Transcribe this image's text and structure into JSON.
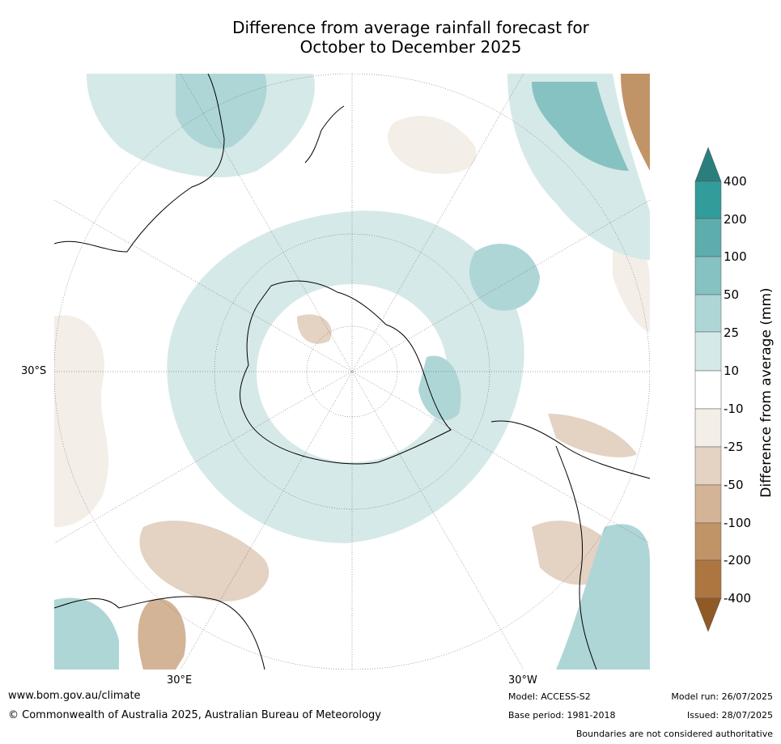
{
  "title": {
    "line1": "Difference from average rainfall forecast for",
    "line2": "October to December 2025"
  },
  "map": {
    "lat_label": "30°S",
    "lon_label_left": "30°E",
    "lon_label_right": "30°W",
    "colors": {
      "wet1": "#d5e9e8",
      "wet2": "#afd6d6",
      "wet3": "#86c2c1",
      "wet4": "#5eadad",
      "wet5": "#329c9a",
      "wet6": "#2a7f7d",
      "dry1": "#f3eee8",
      "dry2": "#e4d2c2",
      "dry3": "#d4b496",
      "dry4": "#c19468",
      "dry5": "#ad7641",
      "dry6": "#8f5a26",
      "coast": "#000000",
      "border": "#888888"
    }
  },
  "colorbar": {
    "label": "Difference from average (mm)",
    "ticks": [
      "400",
      "200",
      "100",
      "50",
      "25",
      "10",
      "-10",
      "-25",
      "-50",
      "-100",
      "-200",
      "-400"
    ]
  },
  "footer": {
    "url": "www.bom.gov.au/climate",
    "copyright": "© Commonwealth of Australia 2025, Australian Bureau of Meteorology",
    "model": "Model: ACCESS-S2",
    "base_period": "Base period: 1981-2018",
    "model_run": "Model run: 26/07/2025",
    "issued": "Issued: 28/07/2025",
    "disclaimer": "Boundaries are not considered authoritative"
  }
}
